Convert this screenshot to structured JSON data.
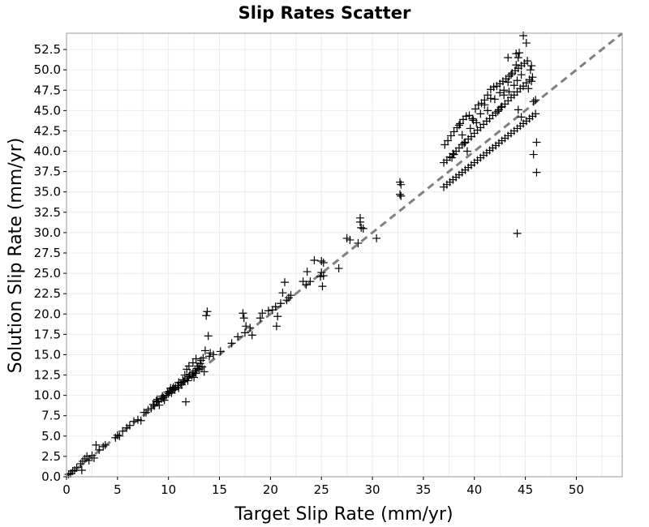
{
  "chart_data": {
    "type": "scatter",
    "title": "Slip Rates Scatter",
    "xlabel": "Target Slip Rate (mm/yr)",
    "ylabel": "Solution Slip Rate (mm/yr)",
    "xlim": [
      0,
      54.5
    ],
    "ylim": [
      0,
      54.5
    ],
    "x_ticks": [
      "0",
      "5",
      "10",
      "15",
      "20",
      "25",
      "30",
      "35",
      "40",
      "45",
      "50"
    ],
    "y_ticks": [
      "0.0",
      "2.5",
      "5.0",
      "7.5",
      "10.0",
      "12.5",
      "15.0",
      "17.5",
      "20.0",
      "22.5",
      "25.0",
      "27.5",
      "30.0",
      "32.5",
      "35.0",
      "37.5",
      "40.0",
      "42.5",
      "45.0",
      "47.5",
      "50.0",
      "52.5"
    ],
    "grid": true,
    "reference_line": {
      "style": "dashed",
      "color": "#808080",
      "from": [
        0,
        0
      ],
      "to": [
        54.5,
        54.5
      ]
    },
    "marker": "plus",
    "series": [
      {
        "color": "#000000",
        "points": [
          [
            0.2,
            0.3
          ],
          [
            0.4,
            0.4
          ],
          [
            0.6,
            0.7
          ],
          [
            0.8,
            0.8
          ],
          [
            1.0,
            1.1
          ],
          [
            1.5,
            0.8
          ],
          [
            1.4,
            1.6
          ],
          [
            1.6,
            1.9
          ],
          [
            1.8,
            2.2
          ],
          [
            2.0,
            2.5
          ],
          [
            2.2,
            2.0
          ],
          [
            2.5,
            2.6
          ],
          [
            2.7,
            2.3
          ],
          [
            2.9,
            3.9
          ],
          [
            3.2,
            3.3
          ],
          [
            3.6,
            3.7
          ],
          [
            3.8,
            3.9
          ],
          [
            4.8,
            4.8
          ],
          [
            5.0,
            5.1
          ],
          [
            5.2,
            5.0
          ],
          [
            5.5,
            5.6
          ],
          [
            5.9,
            6.0
          ],
          [
            6.2,
            6.3
          ],
          [
            6.6,
            6.8
          ],
          [
            7.0,
            7.0
          ],
          [
            7.3,
            6.9
          ],
          [
            7.8,
            7.9
          ],
          [
            8.0,
            8.2
          ],
          [
            8.3,
            8.4
          ],
          [
            8.6,
            8.7
          ],
          [
            8.8,
            9.3
          ],
          [
            9.0,
            9.2
          ],
          [
            9.1,
            8.8
          ],
          [
            9.3,
            9.6
          ],
          [
            9.5,
            9.7
          ],
          [
            9.6,
            9.4
          ],
          [
            9.8,
            10.0
          ],
          [
            10.0,
            10.2
          ],
          [
            10.1,
            10.5
          ],
          [
            10.3,
            10.3
          ],
          [
            10.4,
            10.8
          ],
          [
            10.6,
            10.7
          ],
          [
            10.7,
            11.0
          ],
          [
            10.9,
            11.2
          ],
          [
            11.0,
            10.9
          ],
          [
            11.2,
            11.5
          ],
          [
            11.3,
            11.3
          ],
          [
            11.5,
            11.7
          ],
          [
            11.6,
            11.9
          ],
          [
            11.8,
            12.1
          ],
          [
            11.9,
            11.8
          ],
          [
            12.0,
            12.3
          ],
          [
            12.1,
            12.6
          ],
          [
            12.3,
            12.4
          ],
          [
            12.4,
            12.8
          ],
          [
            12.5,
            12.2
          ],
          [
            12.6,
            13.0
          ],
          [
            12.7,
            12.7
          ],
          [
            12.8,
            13.3
          ],
          [
            12.9,
            13.6
          ],
          [
            13.0,
            13.2
          ],
          [
            13.1,
            13.9
          ],
          [
            13.2,
            14.3
          ],
          [
            13.3,
            13.5
          ],
          [
            13.4,
            14.6
          ],
          [
            13.5,
            12.9
          ],
          [
            12.7,
            14.5
          ],
          [
            12.4,
            14.0
          ],
          [
            12.0,
            13.6
          ],
          [
            11.8,
            13.2
          ],
          [
            11.6,
            12.5
          ],
          [
            11.4,
            11.9
          ],
          [
            11.0,
            11.6
          ],
          [
            10.5,
            11.0
          ],
          [
            10.2,
            10.9
          ],
          [
            9.9,
            10.4
          ],
          [
            9.4,
            9.9
          ],
          [
            8.9,
            9.5
          ],
          [
            8.5,
            8.9
          ],
          [
            7.6,
            7.9
          ],
          [
            11.7,
            9.2
          ],
          [
            13.8,
            20.3
          ],
          [
            13.7,
            19.8
          ],
          [
            13.9,
            17.3
          ],
          [
            13.6,
            15.5
          ],
          [
            14.0,
            14.8
          ],
          [
            14.1,
            15.2
          ],
          [
            14.4,
            15.0
          ],
          [
            15.1,
            15.4
          ],
          [
            16.2,
            16.4
          ],
          [
            16.8,
            17.2
          ],
          [
            17.3,
            20.1
          ],
          [
            17.4,
            19.5
          ],
          [
            17.6,
            18.5
          ],
          [
            17.5,
            17.7
          ],
          [
            18.0,
            18.3
          ],
          [
            18.2,
            17.4
          ],
          [
            19.0,
            19.5
          ],
          [
            19.2,
            20.1
          ],
          [
            19.8,
            20.4
          ],
          [
            20.2,
            20.5
          ],
          [
            20.5,
            20.9
          ],
          [
            20.7,
            19.7
          ],
          [
            20.6,
            18.5
          ],
          [
            21.0,
            21.3
          ],
          [
            21.2,
            22.6
          ],
          [
            21.4,
            23.9
          ],
          [
            21.6,
            21.7
          ],
          [
            21.8,
            22.0
          ],
          [
            22.0,
            22.3
          ],
          [
            23.2,
            24.0
          ],
          [
            23.5,
            23.6
          ],
          [
            23.6,
            25.2
          ],
          [
            23.9,
            24.0
          ],
          [
            24.3,
            26.6
          ],
          [
            25.0,
            26.5
          ],
          [
            25.2,
            26.3
          ],
          [
            25.0,
            25.1
          ],
          [
            24.9,
            24.6
          ],
          [
            25.1,
            23.4
          ],
          [
            25.2,
            24.7
          ],
          [
            26.7,
            25.6
          ],
          [
            27.5,
            29.3
          ],
          [
            27.8,
            29.1
          ],
          [
            28.8,
            31.8
          ],
          [
            28.8,
            31.3
          ],
          [
            28.9,
            30.6
          ],
          [
            29.1,
            30.5
          ],
          [
            28.6,
            28.7
          ],
          [
            30.4,
            29.3
          ],
          [
            32.7,
            36.2
          ],
          [
            32.8,
            35.9
          ],
          [
            32.7,
            34.7
          ],
          [
            32.8,
            34.5
          ],
          [
            37.0,
            35.6
          ],
          [
            37.3,
            35.9
          ],
          [
            37.6,
            36.2
          ],
          [
            37.9,
            36.5
          ],
          [
            38.2,
            36.8
          ],
          [
            38.5,
            37.1
          ],
          [
            38.8,
            37.4
          ],
          [
            39.1,
            37.7
          ],
          [
            39.4,
            38.0
          ],
          [
            39.7,
            38.3
          ],
          [
            40.0,
            38.6
          ],
          [
            40.3,
            38.9
          ],
          [
            40.6,
            39.2
          ],
          [
            40.9,
            39.5
          ],
          [
            41.2,
            39.8
          ],
          [
            41.5,
            40.1
          ],
          [
            41.8,
            40.4
          ],
          [
            42.1,
            40.7
          ],
          [
            42.4,
            41.0
          ],
          [
            42.7,
            41.3
          ],
          [
            43.0,
            41.6
          ],
          [
            43.3,
            41.9
          ],
          [
            43.6,
            42.2
          ],
          [
            43.9,
            42.5
          ],
          [
            44.2,
            42.8
          ],
          [
            44.5,
            43.1
          ],
          [
            44.8,
            43.4
          ],
          [
            45.1,
            43.7
          ],
          [
            45.4,
            44.0
          ],
          [
            45.7,
            44.3
          ],
          [
            46.0,
            44.6
          ],
          [
            37.0,
            38.6
          ],
          [
            37.3,
            38.9
          ],
          [
            37.6,
            39.3
          ],
          [
            37.9,
            39.7
          ],
          [
            38.2,
            40.0
          ],
          [
            38.5,
            40.4
          ],
          [
            38.8,
            40.8
          ],
          [
            39.1,
            41.1
          ],
          [
            39.4,
            41.5
          ],
          [
            39.7,
            41.8
          ],
          [
            40.0,
            42.2
          ],
          [
            40.3,
            42.6
          ],
          [
            40.6,
            42.9
          ],
          [
            40.9,
            43.3
          ],
          [
            41.2,
            43.7
          ],
          [
            41.5,
            44.0
          ],
          [
            41.8,
            44.4
          ],
          [
            42.1,
            44.7
          ],
          [
            42.4,
            45.1
          ],
          [
            42.7,
            45.5
          ],
          [
            43.0,
            45.8
          ],
          [
            43.3,
            46.2
          ],
          [
            43.6,
            46.6
          ],
          [
            43.9,
            46.9
          ],
          [
            44.2,
            47.3
          ],
          [
            44.5,
            47.7
          ],
          [
            44.8,
            48.0
          ],
          [
            45.1,
            48.4
          ],
          [
            45.4,
            48.8
          ],
          [
            45.7,
            49.1
          ],
          [
            37.1,
            40.8
          ],
          [
            37.4,
            41.3
          ],
          [
            37.7,
            41.9
          ],
          [
            38.0,
            42.4
          ],
          [
            38.3,
            42.9
          ],
          [
            38.6,
            43.4
          ],
          [
            38.9,
            43.9
          ],
          [
            39.2,
            44.3
          ],
          [
            39.5,
            44.4
          ],
          [
            39.8,
            44.0
          ],
          [
            40.1,
            45.2
          ],
          [
            40.4,
            45.7
          ],
          [
            40.7,
            45.9
          ],
          [
            41.0,
            46.3
          ],
          [
            41.3,
            46.9
          ],
          [
            41.6,
            47.6
          ],
          [
            41.9,
            47.9
          ],
          [
            42.2,
            48.0
          ],
          [
            42.5,
            48.3
          ],
          [
            42.8,
            48.6
          ],
          [
            43.1,
            48.9
          ],
          [
            43.4,
            49.2
          ],
          [
            43.7,
            49.6
          ],
          [
            44.0,
            49.9
          ],
          [
            44.3,
            50.2
          ],
          [
            44.6,
            50.5
          ],
          [
            44.9,
            50.8
          ],
          [
            45.2,
            51.1
          ],
          [
            45.5,
            50.0
          ],
          [
            44.1,
            52.0
          ],
          [
            44.3,
            51.5
          ],
          [
            44.4,
            52.1
          ],
          [
            44.1,
            50.6
          ],
          [
            43.6,
            49.4
          ],
          [
            43.3,
            48.5
          ],
          [
            42.9,
            47.5
          ],
          [
            42.5,
            47.2
          ],
          [
            43.3,
            51.5
          ],
          [
            44.8,
            54.2
          ],
          [
            45.1,
            53.3
          ],
          [
            45.6,
            50.5
          ],
          [
            38.8,
            42.0
          ],
          [
            39.0,
            41.0
          ],
          [
            39.3,
            40.0
          ],
          [
            38.0,
            39.6
          ],
          [
            37.8,
            39.2
          ],
          [
            38.5,
            43.2
          ],
          [
            39.6,
            42.8
          ],
          [
            39.9,
            43.8
          ],
          [
            40.2,
            43.5
          ],
          [
            40.6,
            44.6
          ],
          [
            41.0,
            45.7
          ],
          [
            41.3,
            45.0
          ],
          [
            41.6,
            46.5
          ],
          [
            42.0,
            46.4
          ],
          [
            42.3,
            44.9
          ],
          [
            42.6,
            45.4
          ],
          [
            42.9,
            46.9
          ],
          [
            43.4,
            47.3
          ],
          [
            43.9,
            48.1
          ],
          [
            44.2,
            48.7
          ],
          [
            44.6,
            49.4
          ],
          [
            45.3,
            47.7
          ],
          [
            45.6,
            48.6
          ],
          [
            45.8,
            46.1
          ],
          [
            46.0,
            46.3
          ],
          [
            46.1,
            41.1
          ],
          [
            45.8,
            39.6
          ],
          [
            46.1,
            37.4
          ],
          [
            44.2,
            29.9
          ],
          [
            44.6,
            44.2
          ],
          [
            44.3,
            45.1
          ]
        ]
      }
    ]
  }
}
